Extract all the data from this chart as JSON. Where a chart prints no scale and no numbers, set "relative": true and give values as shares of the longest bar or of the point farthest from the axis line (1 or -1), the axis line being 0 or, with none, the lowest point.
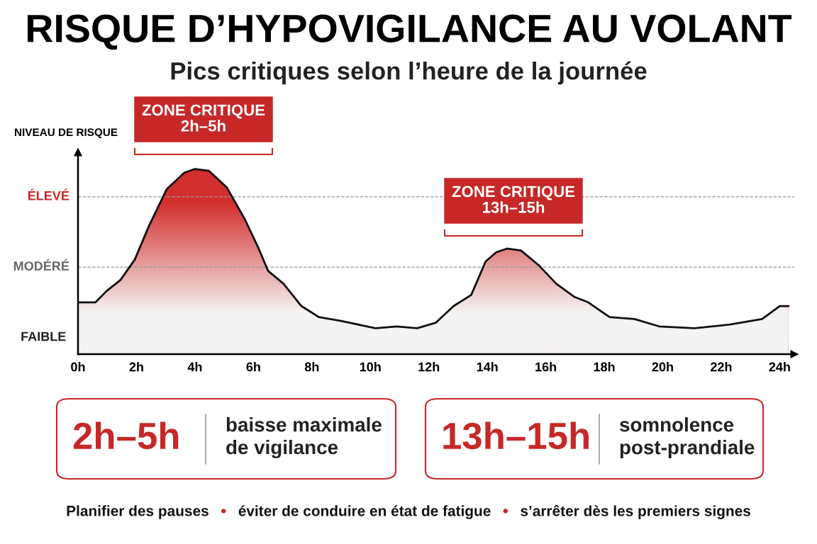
{
  "chart_data": {
    "type": "area",
    "title": "RISQUE D’HYPOVIGILANCE AU VOLANT",
    "subtitle": "Pics critiques selon l’heure de la journée",
    "ylabel": "NIVEAU DE RISQUE",
    "relative": true,
    "series": [
      {
        "color": "#d32f2f",
        "x": [
          0,
          0.6,
          0.97,
          1.45,
          1.94,
          2.42,
          3.03,
          3.64,
          4.0,
          4.48,
          5.09,
          5.7,
          6.18,
          6.5,
          7.03,
          7.64,
          8.24,
          8.97,
          10.18,
          10.9,
          11.6,
          12.24,
          12.85,
          13.45,
          13.94,
          14.3,
          14.67,
          15.15,
          15.76,
          16.36,
          16.97,
          17.45,
          18.18,
          19.03,
          19.88,
          21.09,
          22.3,
          23.4,
          24.0,
          24.3
        ],
        "values": [
          0.28,
          0.28,
          0.34,
          0.4,
          0.51,
          0.69,
          0.89,
          0.98,
          1.0,
          0.99,
          0.9,
          0.73,
          0.57,
          0.45,
          0.38,
          0.26,
          0.2,
          0.18,
          0.14,
          0.15,
          0.14,
          0.17,
          0.26,
          0.32,
          0.5,
          0.55,
          0.57,
          0.56,
          0.48,
          0.38,
          0.31,
          0.28,
          0.2,
          0.19,
          0.15,
          0.14,
          0.16,
          0.19,
          0.26,
          0.26
        ]
      }
    ],
    "xlim": [
      0,
      24.5
    ],
    "xticks": [
      {
        "value": 0,
        "label": "0h"
      },
      {
        "value": 2,
        "label": "2h"
      },
      {
        "value": 4,
        "label": "4h"
      },
      {
        "value": 6,
        "label": "6h"
      },
      {
        "value": 8,
        "label": "8h"
      },
      {
        "value": 10,
        "label": "10h"
      },
      {
        "value": 12,
        "label": "12h"
      },
      {
        "value": 14,
        "label": "14h"
      },
      {
        "value": 16,
        "label": "16h"
      },
      {
        "value": 18,
        "label": "18h"
      },
      {
        "value": 20,
        "label": "20h"
      },
      {
        "value": 22,
        "label": "22h"
      },
      {
        "value": 24,
        "label": "24h"
      }
    ],
    "ref_lines": [
      {
        "axis": "y",
        "value": 0.47,
        "label": "MODÉRÉ",
        "color": "#999999",
        "line_style": "dashed"
      },
      {
        "axis": "y",
        "value": 0.85,
        "label": "ÉLEVÉ",
        "color": "#999999",
        "line_style": "dashed"
      }
    ],
    "annotations": [
      {
        "text": "FAIBLE",
        "x": 0,
        "y": 0.09
      },
      "ZONE CRITIQUE\n2h–5h",
      "ZONE CRITIQUE\n13h–15h",
      "2h–5h",
      "baisse maximale\nde vigilance",
      "13h–15h",
      "somnolence\npost-prandiale",
      "Planifier des pauses",
      "•",
      "éviter de conduire en état de fatigue",
      "•",
      "s’arrêter dès les premiers signes"
    ],
    "grid": false,
    "legend": false
  }
}
